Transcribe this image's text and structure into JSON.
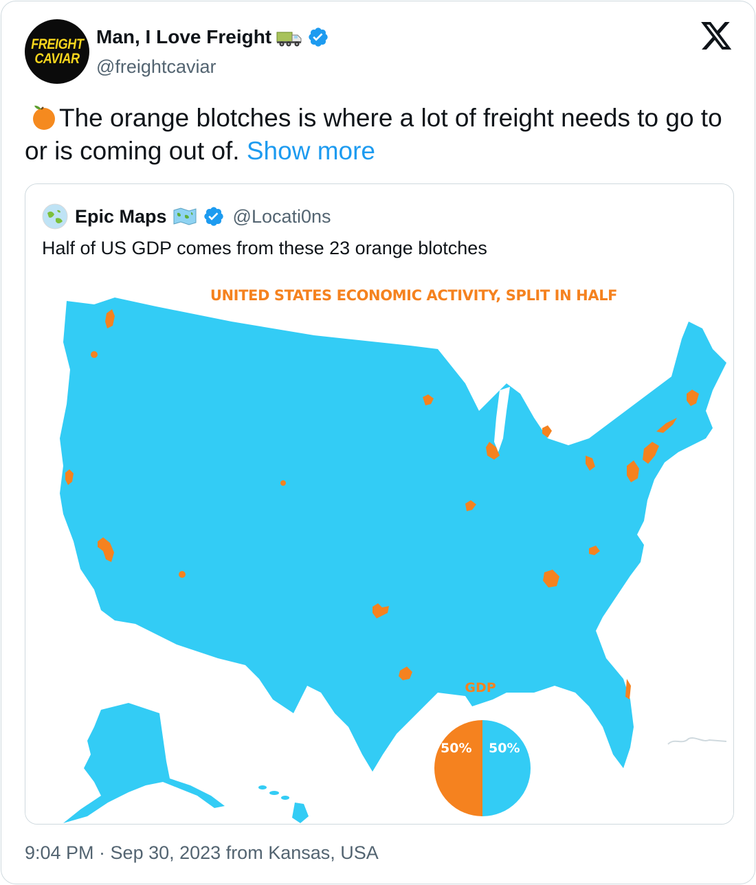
{
  "author": {
    "display_name": "Man, I Love Freight",
    "handle": "@freightcaviar",
    "avatar_text": [
      "FREIGHT",
      "CAVIAR"
    ],
    "name_emoji": "truck-icon",
    "verified": true
  },
  "tweet": {
    "emoji": "tangerine-icon",
    "text": "The orange blotches is where a lot of freight needs to go to or is coming out of. ",
    "show_more": "Show more"
  },
  "quoted_tweet": {
    "display_name": "Epic Maps",
    "handle": "@Locati0ns",
    "verified": true,
    "name_emoji": "world-map-icon",
    "text": "Half of US GDP comes from these 23 orange blotches",
    "image": {
      "title": "UNITED STATES ECONOMIC ACTIVITY, SPLIT IN HALF",
      "pie": {
        "label": "GDP",
        "slices": [
          {
            "value": 50,
            "label": "50%",
            "color": "#f5821f"
          },
          {
            "value": 50,
            "label": "50%",
            "color": "#33ccf5"
          }
        ]
      },
      "colors": {
        "land": "#33ccf5",
        "hotspot": "#f5821f",
        "title": "#f5821f"
      }
    }
  },
  "footer": {
    "timestamp": "9:04 PM · Sep 30, 2023 from Kansas, USA"
  },
  "brand": {
    "accent": "#1d9bf0",
    "verified": "#1d9bf0"
  }
}
